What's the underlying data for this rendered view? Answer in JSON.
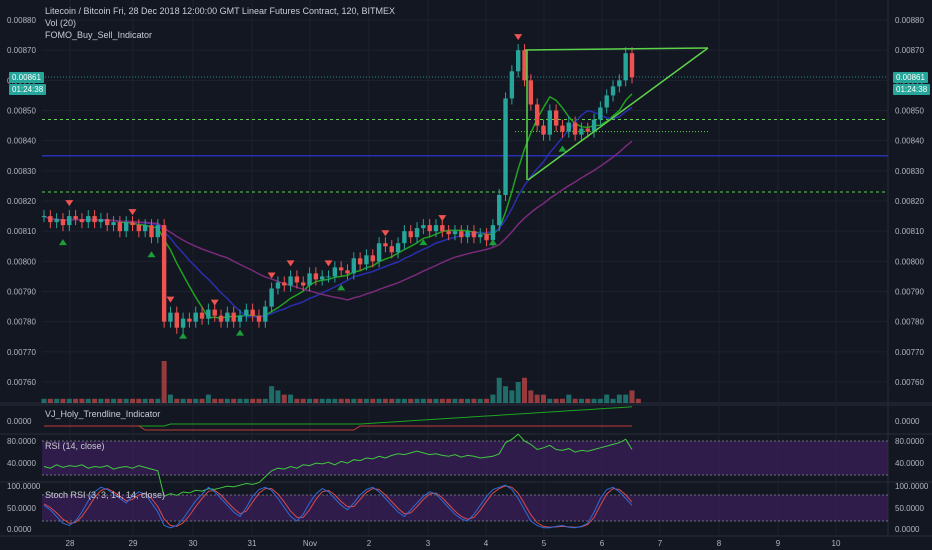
{
  "header": {
    "title": "Litecoin / Bitcoin Fri, 28 Dec 2018 12:00:00 GMT Linear Futures Contract, 120, BITMEX",
    "volume_label": "Vol (20)",
    "indicator_label": "FOMO_Buy_Sell_Indicator"
  },
  "price_tag": {
    "value": "0.00861",
    "countdown": "01:24:38"
  },
  "colors": {
    "background": "#131722",
    "bull": "#26a69a",
    "bear": "#ef5350",
    "trendline": "#5cd34a",
    "ma_blue": "#2a2fb0",
    "ma_purple": "#7a2a7a",
    "rsi": "#3ec93e",
    "stoch_k": "#2b6cd8",
    "stoch_d": "#d84a4a",
    "band": "#3d1f5c"
  },
  "chart_data": [
    {
      "type": "line",
      "panel": "price",
      "y_ticks": [
        "0.00880",
        "0.00870",
        "0.00860",
        "0.00850",
        "0.00840",
        "0.00830",
        "0.00820",
        "0.00810",
        "0.00800",
        "0.00790",
        "0.00780",
        "0.00770",
        "0.00760"
      ],
      "x_ticks": [
        "28",
        "29",
        "30",
        "31",
        "Nov",
        "2",
        "3",
        "4",
        "5",
        "6",
        "7",
        "8",
        "9",
        "10"
      ],
      "ylim": [
        0.00754,
        0.00885
      ],
      "levels": {
        "green_dashed_upper": 0.00847,
        "green_dashed_lower": 0.00823,
        "blue_horizontal": 0.00835,
        "green_dotted": 0.00843
      },
      "price_series": [
        0.00815,
        0.00813,
        0.00814,
        0.00812,
        0.00815,
        0.00814,
        0.00813,
        0.00815,
        0.00813,
        0.00814,
        0.00812,
        0.00813,
        0.0081,
        0.00813,
        0.00812,
        0.0081,
        0.00812,
        0.00808,
        0.00812,
        0.0078,
        0.00783,
        0.00778,
        0.00781,
        0.0078,
        0.00783,
        0.00781,
        0.00784,
        0.00782,
        0.0078,
        0.00783,
        0.0078,
        0.00782,
        0.00784,
        0.00782,
        0.0078,
        0.00785,
        0.00791,
        0.00793,
        0.00792,
        0.00795,
        0.00793,
        0.00792,
        0.00796,
        0.00794,
        0.00795,
        0.00795,
        0.00798,
        0.00797,
        0.00796,
        0.00801,
        0.00799,
        0.00802,
        0.008,
        0.00806,
        0.00805,
        0.00803,
        0.00806,
        0.0081,
        0.00808,
        0.00811,
        0.00812,
        0.0081,
        0.00812,
        0.0081,
        0.00809,
        0.0081,
        0.00808,
        0.0081,
        0.00808,
        0.00809,
        0.00807,
        0.00812,
        0.00822,
        0.00854,
        0.00863,
        0.0087,
        0.0086,
        0.00852,
        0.00845,
        0.00842,
        0.0085,
        0.00845,
        0.00843,
        0.00846,
        0.00842,
        0.00844,
        0.00843,
        0.00847,
        0.00851,
        0.00855,
        0.00858,
        0.0086,
        0.00869,
        0.00861
      ]
    },
    {
      "type": "bar",
      "panel": "volume",
      "values": [
        1,
        1,
        1,
        1,
        1,
        1,
        1,
        1,
        1,
        1,
        1,
        1,
        1,
        1,
        1,
        1,
        1,
        1,
        1,
        10,
        2,
        1,
        1,
        1,
        1,
        1,
        2,
        1,
        1,
        1,
        1,
        1,
        1,
        1,
        1,
        1,
        4,
        3,
        2,
        2,
        1,
        1,
        1,
        1,
        1,
        1,
        1,
        1,
        1,
        1,
        1,
        1,
        1,
        1,
        1,
        1,
        1,
        1,
        1,
        1,
        1,
        1,
        1,
        1,
        1,
        1,
        1,
        1,
        1,
        1,
        1,
        2,
        6,
        4,
        3,
        5,
        6,
        3,
        2,
        2,
        1,
        1,
        1,
        2,
        1,
        1,
        1,
        1,
        1,
        2,
        1,
        2,
        2,
        3,
        1
      ]
    },
    {
      "type": "line",
      "panel": "VJ_Holy_Trendline_Indicator",
      "title": "VJ_Holy_Trendline_Indicator",
      "y_ticks": [
        "0.0000"
      ]
    },
    {
      "type": "line",
      "panel": "rsi",
      "title": "RSI (14, close)",
      "y_ticks": [
        "80.0000",
        "40.0000"
      ],
      "ylim": [
        10,
        90
      ],
      "values": [
        50,
        48,
        52,
        49,
        51,
        50,
        52,
        48,
        50,
        49,
        51,
        47,
        49,
        50,
        48,
        51,
        49,
        47,
        45,
        15,
        18,
        16,
        20,
        19,
        22,
        21,
        24,
        23,
        25,
        27,
        26,
        28,
        30,
        29,
        31,
        38,
        45,
        48,
        47,
        50,
        48,
        52,
        51,
        54,
        53,
        55,
        52,
        56,
        54,
        58,
        57,
        60,
        59,
        62,
        60,
        63,
        65,
        64,
        66,
        68,
        66,
        64,
        65,
        63,
        62,
        64,
        61,
        63,
        62,
        60,
        61,
        62,
        65,
        78,
        82,
        88,
        80,
        76,
        70,
        72,
        75,
        70,
        69,
        71,
        67,
        69,
        68,
        70,
        72,
        74,
        76,
        78,
        82,
        70
      ]
    },
    {
      "type": "line",
      "panel": "stoch_rsi",
      "title": "Stoch RSI (3, 3, 14, 14, close)",
      "y_ticks": [
        "100.0000",
        "50.0000",
        "0.0000"
      ],
      "ylim": [
        0,
        100
      ],
      "series": [
        {
          "values": [
            55,
            45,
            30,
            15,
            10,
            20,
            40,
            65,
            85,
            95,
            90,
            80,
            70,
            60,
            75,
            85,
            80,
            60,
            40,
            10,
            5,
            10,
            25,
            45,
            65,
            80,
            95,
            85,
            70,
            55,
            40,
            30,
            50,
            75,
            90,
            95,
            88,
            70,
            50,
            30,
            20,
            35,
            60,
            80,
            92,
            85,
            70,
            55,
            45,
            60,
            78,
            90,
            95,
            85,
            70,
            55,
            40,
            30,
            45,
            60,
            75,
            85,
            80,
            65,
            50,
            35,
            25,
            20,
            35,
            55,
            75,
            90,
            95,
            100,
            90,
            70,
            45,
            20,
            10,
            5,
            5,
            8,
            10,
            6,
            5,
            8,
            15,
            40,
            70,
            90,
            95,
            85,
            70,
            55
          ]
        },
        {
          "values": [
            58,
            50,
            38,
            24,
            15,
            17,
            30,
            50,
            72,
            88,
            92,
            85,
            75,
            65,
            68,
            78,
            82,
            70,
            52,
            25,
            10,
            8,
            16,
            32,
            52,
            70,
            86,
            88,
            78,
            62,
            48,
            36,
            42,
            62,
            82,
            92,
            92,
            80,
            62,
            42,
            28,
            28,
            45,
            68,
            85,
            88,
            78,
            63,
            52,
            52,
            68,
            84,
            92,
            90,
            78,
            63,
            48,
            36,
            38,
            52,
            68,
            80,
            82,
            72,
            57,
            42,
            30,
            24,
            28,
            44,
            64,
            82,
            92,
            98,
            95,
            82,
            58,
            34,
            16,
            8,
            6,
            7,
            8,
            7,
            6,
            7,
            12,
            28,
            55,
            80,
            92,
            90,
            78,
            62
          ]
        }
      ]
    }
  ]
}
